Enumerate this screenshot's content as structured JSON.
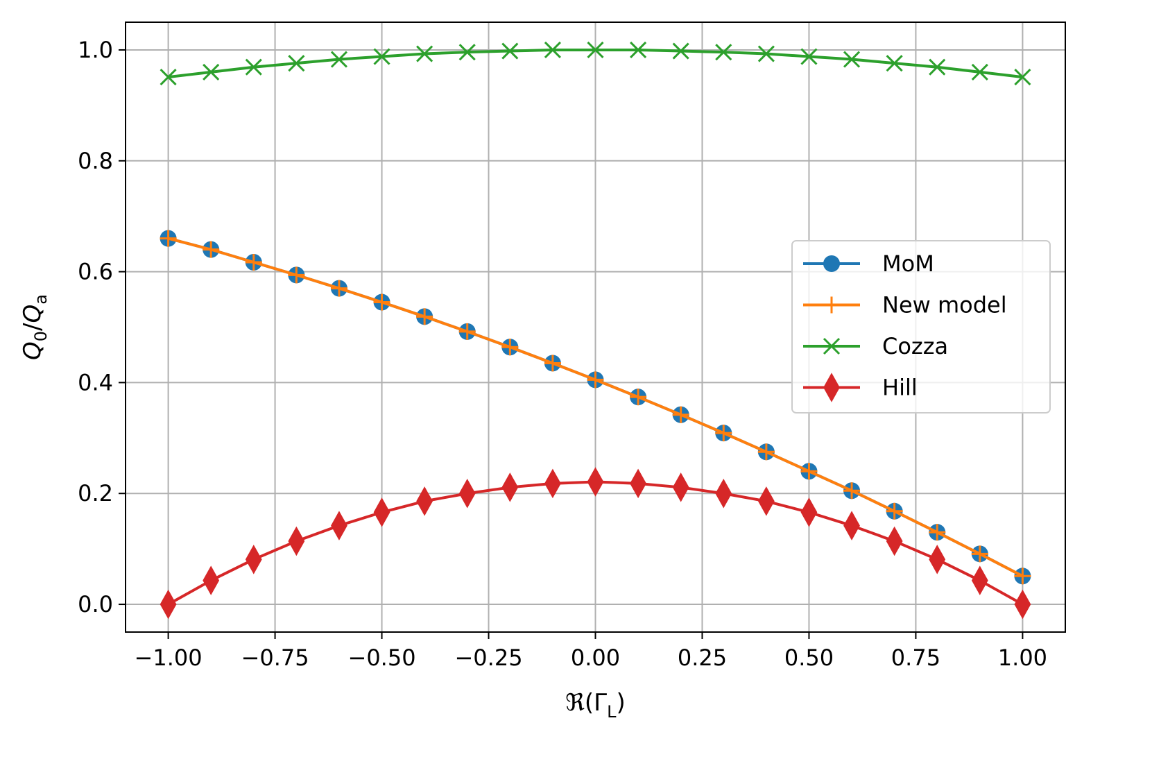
{
  "chart_data": {
    "type": "line",
    "xlabel": "ℜ(Γ_L)",
    "ylabel": "Q_0/Q_a",
    "xlim": [
      -1.1,
      1.1
    ],
    "ylim": [
      -0.05,
      1.05
    ],
    "xticks": [
      -1.0,
      -0.75,
      -0.5,
      -0.25,
      0.0,
      0.25,
      0.5,
      0.75,
      1.0
    ],
    "xtick_labels": [
      "−1.00",
      "−0.75",
      "−0.50",
      "−0.25",
      "0.00",
      "0.25",
      "0.50",
      "0.75",
      "1.00"
    ],
    "yticks": [
      0.0,
      0.2,
      0.4,
      0.6,
      0.8,
      1.0
    ],
    "ytick_labels": [
      "0.0",
      "0.2",
      "0.4",
      "0.6",
      "0.8",
      "1.0"
    ],
    "grid": true,
    "legend_position": "center-right",
    "x": [
      -1.0,
      -0.9,
      -0.8,
      -0.7,
      -0.6,
      -0.5,
      -0.4,
      -0.3,
      -0.2,
      -0.1,
      0.0,
      0.1,
      0.2,
      0.3,
      0.4,
      0.5,
      0.6,
      0.7,
      0.8,
      0.9,
      1.0
    ],
    "series": [
      {
        "name": "MoM",
        "color": "#1f77b4",
        "marker": "circle",
        "values": [
          0.66,
          0.64,
          0.617,
          0.594,
          0.57,
          0.545,
          0.519,
          0.492,
          0.464,
          0.435,
          0.405,
          0.374,
          0.342,
          0.309,
          0.275,
          0.24,
          0.205,
          0.168,
          0.13,
          0.091,
          0.051
        ]
      },
      {
        "name": "New model",
        "color": "#ff7f0e",
        "marker": "plus",
        "values": [
          0.66,
          0.64,
          0.617,
          0.594,
          0.57,
          0.545,
          0.519,
          0.492,
          0.464,
          0.435,
          0.405,
          0.374,
          0.342,
          0.309,
          0.275,
          0.24,
          0.205,
          0.168,
          0.13,
          0.091,
          0.051
        ]
      },
      {
        "name": "Cozza",
        "color": "#2ca02c",
        "marker": "x",
        "values": [
          0.951,
          0.96,
          0.969,
          0.976,
          0.983,
          0.988,
          0.993,
          0.996,
          0.998,
          1.0,
          1.0,
          1.0,
          0.998,
          0.996,
          0.993,
          0.988,
          0.983,
          0.976,
          0.969,
          0.96,
          0.951
        ]
      },
      {
        "name": "Hill",
        "color": "#d62728",
        "marker": "diamond",
        "values": [
          0.0,
          0.043,
          0.081,
          0.114,
          0.142,
          0.166,
          0.186,
          0.2,
          0.211,
          0.218,
          0.221,
          0.218,
          0.211,
          0.2,
          0.186,
          0.166,
          0.142,
          0.114,
          0.081,
          0.043,
          0.0
        ]
      }
    ]
  }
}
